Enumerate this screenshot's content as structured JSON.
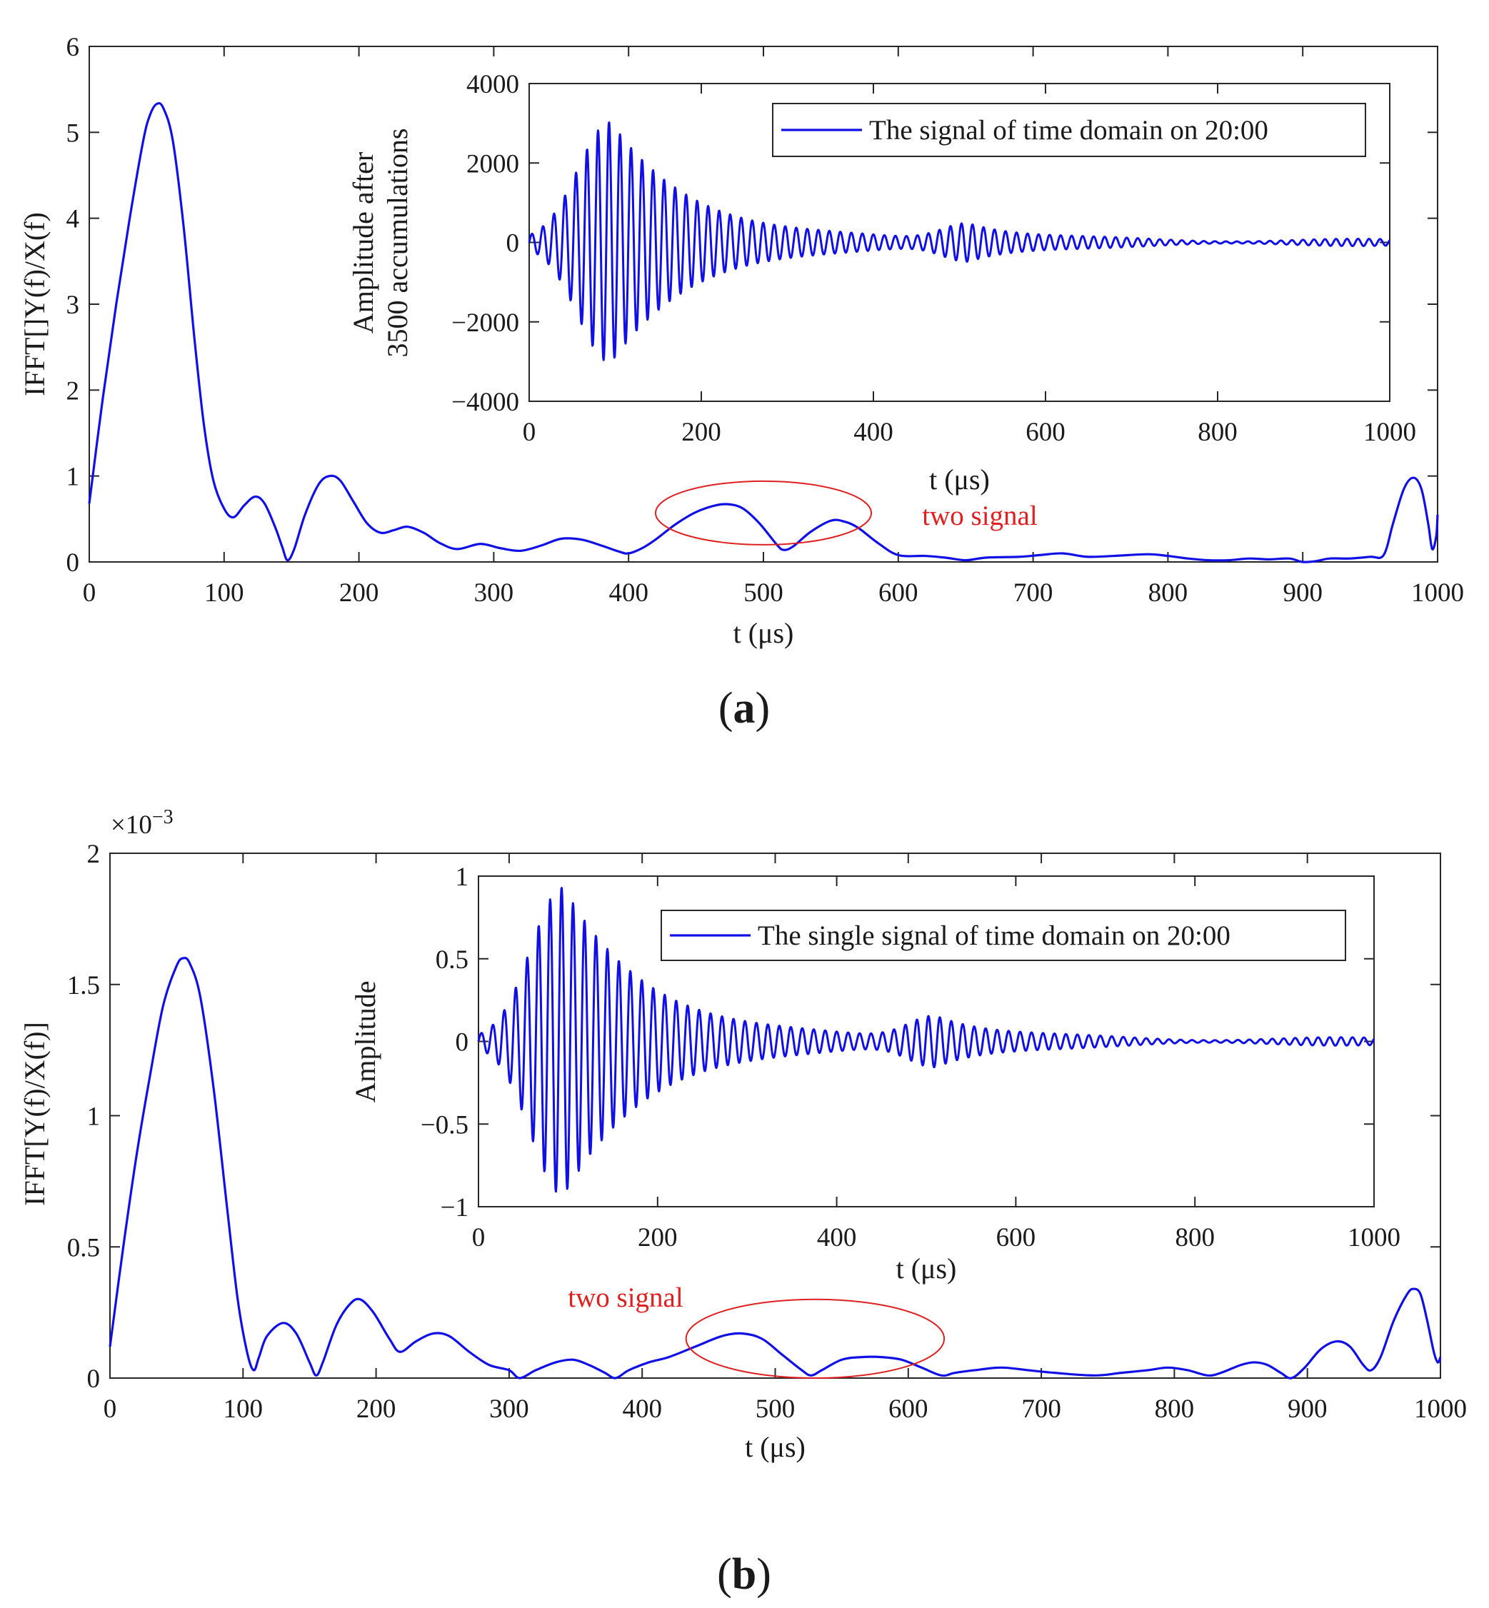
{
  "chart_data": [
    {
      "panel": "(a)",
      "caption": {
        "open": "(",
        "letter": "a",
        "close": ")"
      },
      "type": "line",
      "title": "",
      "xlabel": "t (μs)",
      "ylabel": "IFFT[]Y(f)/X(f)",
      "xlim": [
        0,
        1000
      ],
      "ylim": [
        0,
        6
      ],
      "xticks": [
        0,
        100,
        200,
        300,
        400,
        500,
        600,
        700,
        800,
        900,
        1000
      ],
      "yticks": [
        0,
        1,
        2,
        3,
        4,
        5,
        6
      ],
      "grid": false,
      "series": [
        {
          "name": "main",
          "color": "#1010e6",
          "points": [
            [
              0,
              0.68
            ],
            [
              10,
              1.9
            ],
            [
              20,
              3.0
            ],
            [
              30,
              4.0
            ],
            [
              40,
              4.9
            ],
            [
              45,
              5.2
            ],
            [
              50,
              5.33
            ],
            [
              55,
              5.28
            ],
            [
              62,
              4.9
            ],
            [
              70,
              3.9
            ],
            [
              78,
              2.6
            ],
            [
              85,
              1.6
            ],
            [
              92,
              0.95
            ],
            [
              100,
              0.62
            ],
            [
              107,
              0.52
            ],
            [
              115,
              0.66
            ],
            [
              123,
              0.76
            ],
            [
              130,
              0.68
            ],
            [
              138,
              0.4
            ],
            [
              143,
              0.18
            ],
            [
              147,
              0.02
            ],
            [
              152,
              0.15
            ],
            [
              160,
              0.55
            ],
            [
              170,
              0.9
            ],
            [
              178,
              1.0
            ],
            [
              186,
              0.95
            ],
            [
              196,
              0.7
            ],
            [
              206,
              0.45
            ],
            [
              216,
              0.34
            ],
            [
              226,
              0.37
            ],
            [
              236,
              0.41
            ],
            [
              248,
              0.34
            ],
            [
              260,
              0.22
            ],
            [
              273,
              0.15
            ],
            [
              290,
              0.21
            ],
            [
              305,
              0.16
            ],
            [
              320,
              0.13
            ],
            [
              335,
              0.19
            ],
            [
              350,
              0.27
            ],
            [
              365,
              0.26
            ],
            [
              380,
              0.19
            ],
            [
              393,
              0.12
            ],
            [
              400,
              0.1
            ],
            [
              410,
              0.16
            ],
            [
              420,
              0.26
            ],
            [
              435,
              0.44
            ],
            [
              450,
              0.58
            ],
            [
              465,
              0.66
            ],
            [
              475,
              0.67
            ],
            [
              485,
              0.62
            ],
            [
              497,
              0.45
            ],
            [
              510,
              0.2
            ],
            [
              515,
              0.14
            ],
            [
              522,
              0.18
            ],
            [
              535,
              0.35
            ],
            [
              550,
              0.48
            ],
            [
              560,
              0.47
            ],
            [
              570,
              0.4
            ],
            [
              585,
              0.22
            ],
            [
              600,
              0.08
            ],
            [
              620,
              0.07
            ],
            [
              635,
              0.05
            ],
            [
              650,
              0.02
            ],
            [
              665,
              0.05
            ],
            [
              690,
              0.06
            ],
            [
              705,
              0.08
            ],
            [
              722,
              0.1
            ],
            [
              740,
              0.06
            ],
            [
              760,
              0.07
            ],
            [
              785,
              0.09
            ],
            [
              800,
              0.07
            ],
            [
              815,
              0.04
            ],
            [
              830,
              0.02
            ],
            [
              845,
              0.02
            ],
            [
              860,
              0.04
            ],
            [
              875,
              0.03
            ],
            [
              890,
              0.04
            ],
            [
              900,
              0.0
            ],
            [
              910,
              0.01
            ],
            [
              920,
              0.04
            ],
            [
              935,
              0.04
            ],
            [
              950,
              0.06
            ],
            [
              960,
              0.08
            ],
            [
              967,
              0.45
            ],
            [
              975,
              0.85
            ],
            [
              982,
              0.98
            ],
            [
              988,
              0.85
            ],
            [
              993,
              0.45
            ],
            [
              996,
              0.15
            ],
            [
              999,
              0.3
            ],
            [
              1000,
              0.55
            ]
          ]
        }
      ],
      "annotations": [
        {
          "text": "two signal",
          "color": "#e02020"
        }
      ],
      "ellipse": {
        "center": [
          500,
          0.57
        ],
        "semi_axes": [
          80,
          0.37
        ],
        "color": "#e02020"
      },
      "inset": {
        "type": "line",
        "xlabel": "t (μs)",
        "ylabel_lines": [
          "Amplitude after",
          "3500 accumulations"
        ],
        "xlim": [
          0,
          1000
        ],
        "ylim": [
          -4000,
          4000
        ],
        "xticks": [
          0,
          200,
          400,
          600,
          800,
          1000
        ],
        "yticks": [
          -4000,
          -2000,
          0,
          2000,
          4000
        ],
        "ytick_labels": [
          "−4000",
          "−2000",
          "0",
          "2000",
          "4000"
        ],
        "legend": "The signal of time domain on 20:00",
        "legend_position": "top-right",
        "color": "#1010e6",
        "signal_model": {
          "period_us": 12.8,
          "packets": [
            {
              "center_us": 95,
              "peak": 2950,
              "rise_sd_us": 38,
              "decay_us": 95
            },
            {
              "center_us": 510,
              "peak": 430,
              "rise_sd_us": 30,
              "decay_us": 70
            }
          ],
          "noise_floor": 90
        }
      }
    },
    {
      "panel": "(b)",
      "caption": {
        "open": "(",
        "letter": "b",
        "close": ")"
      },
      "type": "line",
      "title": "",
      "xlabel": "t (μs)",
      "ylabel": "IFFT[Y(f)/X(f)]",
      "y_exponent_base": "×10",
      "y_exponent_power": "−3",
      "xlim": [
        0,
        1000
      ],
      "ylim": [
        0,
        2
      ],
      "xticks": [
        0,
        100,
        200,
        300,
        400,
        500,
        600,
        700,
        800,
        900,
        1000
      ],
      "yticks": [
        0,
        0.5,
        1,
        1.5,
        2
      ],
      "ytick_labels": [
        "0",
        "0.5",
        "1",
        "1.5",
        "2"
      ],
      "grid": false,
      "series": [
        {
          "name": "main",
          "color": "#1010e6",
          "points": [
            [
              0,
              0.12
            ],
            [
              10,
              0.5
            ],
            [
              20,
              0.85
            ],
            [
              30,
              1.15
            ],
            [
              40,
              1.42
            ],
            [
              50,
              1.57
            ],
            [
              55,
              1.6
            ],
            [
              60,
              1.58
            ],
            [
              68,
              1.45
            ],
            [
              78,
              1.1
            ],
            [
              88,
              0.65
            ],
            [
              96,
              0.3
            ],
            [
              103,
              0.1
            ],
            [
              108,
              0.03
            ],
            [
              112,
              0.08
            ],
            [
              118,
              0.16
            ],
            [
              130,
              0.21
            ],
            [
              140,
              0.17
            ],
            [
              150,
              0.06
            ],
            [
              155,
              0.01
            ],
            [
              160,
              0.06
            ],
            [
              170,
              0.2
            ],
            [
              180,
              0.28
            ],
            [
              188,
              0.3
            ],
            [
              198,
              0.25
            ],
            [
              210,
              0.15
            ],
            [
              218,
              0.1
            ],
            [
              230,
              0.14
            ],
            [
              243,
              0.17
            ],
            [
              255,
              0.16
            ],
            [
              270,
              0.1
            ],
            [
              285,
              0.05
            ],
            [
              300,
              0.03
            ],
            [
              308,
              0.0
            ],
            [
              320,
              0.03
            ],
            [
              335,
              0.06
            ],
            [
              348,
              0.07
            ],
            [
              360,
              0.05
            ],
            [
              372,
              0.02
            ],
            [
              380,
              0.0
            ],
            [
              390,
              0.03
            ],
            [
              405,
              0.06
            ],
            [
              420,
              0.08
            ],
            [
              440,
              0.12
            ],
            [
              460,
              0.16
            ],
            [
              475,
              0.17
            ],
            [
              490,
              0.15
            ],
            [
              505,
              0.09
            ],
            [
              520,
              0.03
            ],
            [
              527,
              0.01
            ],
            [
              535,
              0.03
            ],
            [
              550,
              0.07
            ],
            [
              565,
              0.08
            ],
            [
              580,
              0.08
            ],
            [
              595,
              0.07
            ],
            [
              610,
              0.04
            ],
            [
              625,
              0.01
            ],
            [
              635,
              0.02
            ],
            [
              650,
              0.03
            ],
            [
              670,
              0.04
            ],
            [
              690,
              0.03
            ],
            [
              710,
              0.02
            ],
            [
              740,
              0.01
            ],
            [
              760,
              0.02
            ],
            [
              780,
              0.03
            ],
            [
              795,
              0.04
            ],
            [
              810,
              0.03
            ],
            [
              825,
              0.01
            ],
            [
              835,
              0.02
            ],
            [
              850,
              0.05
            ],
            [
              860,
              0.06
            ],
            [
              870,
              0.05
            ],
            [
              880,
              0.02
            ],
            [
              888,
              0.0
            ],
            [
              898,
              0.04
            ],
            [
              910,
              0.11
            ],
            [
              922,
              0.14
            ],
            [
              932,
              0.12
            ],
            [
              942,
              0.05
            ],
            [
              948,
              0.03
            ],
            [
              955,
              0.08
            ],
            [
              965,
              0.22
            ],
            [
              975,
              0.32
            ],
            [
              980,
              0.34
            ],
            [
              985,
              0.32
            ],
            [
              990,
              0.22
            ],
            [
              995,
              0.1
            ],
            [
              998,
              0.06
            ],
            [
              1000,
              0.08
            ]
          ]
        }
      ],
      "annotations": [
        {
          "text": "two signal",
          "color": "#e02020"
        }
      ],
      "ellipse": {
        "center": [
          530,
          0.15
        ],
        "semi_axes": [
          97,
          0.15
        ],
        "color": "#e02020"
      },
      "inset": {
        "type": "line",
        "xlabel": "t (μs)",
        "ylabel_lines": [
          "Amplitude"
        ],
        "xlim": [
          0,
          1000
        ],
        "ylim": [
          -1,
          1
        ],
        "xticks": [
          0,
          200,
          400,
          600,
          800,
          1000
        ],
        "yticks": [
          -1,
          -0.5,
          0,
          0.5,
          1
        ],
        "ytick_labels": [
          "−1",
          "−0.5",
          "0",
          "0.5",
          "1"
        ],
        "legend": "The single signal of time domain on 20:00",
        "legend_position": "top-right",
        "color": "#1010e6",
        "signal_model": {
          "period_us": 12.8,
          "packets": [
            {
              "center_us": 95,
              "peak": 0.91,
              "rise_sd_us": 36,
              "decay_us": 95
            },
            {
              "center_us": 510,
              "peak": 0.14,
              "rise_sd_us": 30,
              "decay_us": 70
            }
          ],
          "noise_floor": 0.025
        }
      }
    }
  ]
}
